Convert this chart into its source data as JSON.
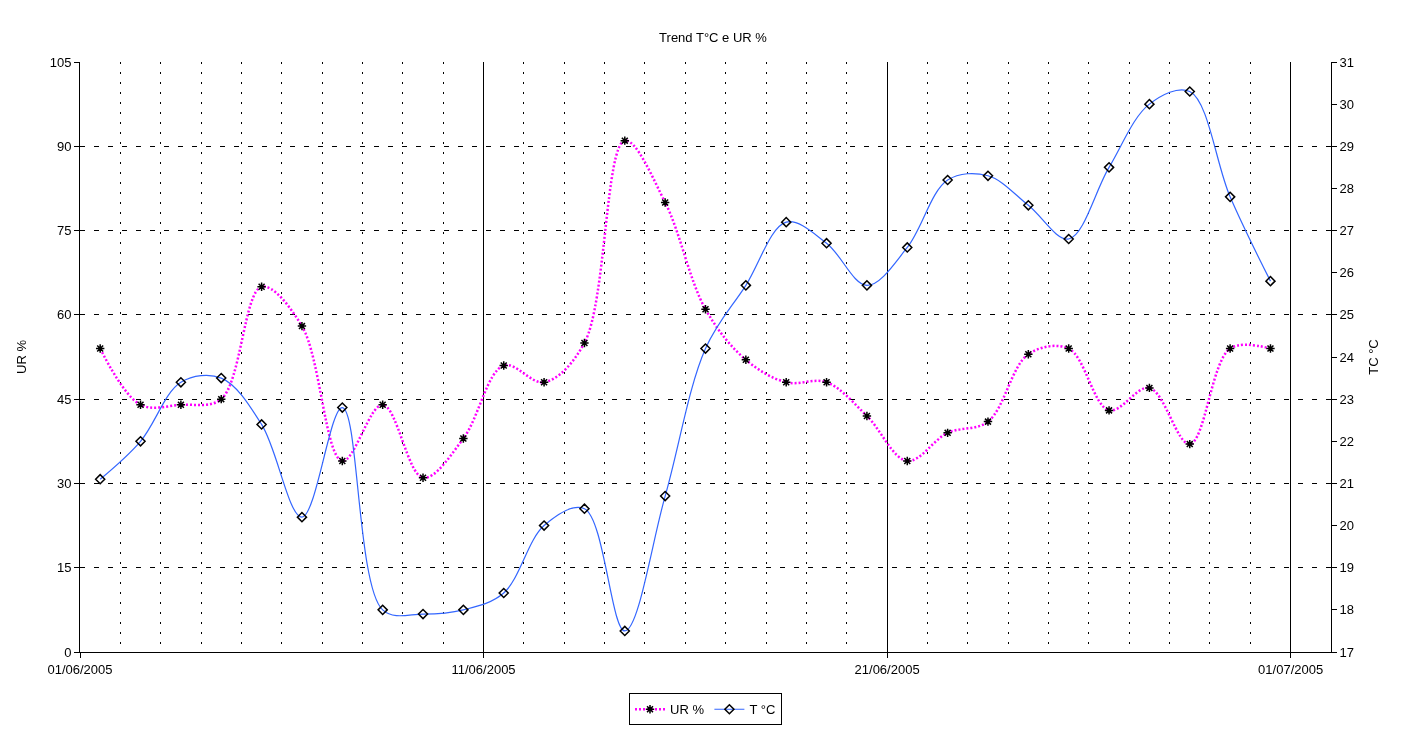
{
  "chart_data": {
    "type": "line",
    "title": "Trend T°C e UR %",
    "ylabel": "UR %",
    "y2label": "TC °C",
    "x": [
      "2005-06-01T12:00",
      "2005-06-02T12:00",
      "2005-06-03T12:00",
      "2005-06-04T12:00",
      "2005-06-05T12:00",
      "2005-06-06T12:00",
      "2005-06-07T12:00",
      "2005-06-08T12:00",
      "2005-06-09T12:00",
      "2005-06-10T12:00",
      "2005-06-11T12:00",
      "2005-06-12T12:00",
      "2005-06-13T12:00",
      "2005-06-14T12:00",
      "2005-06-15T12:00",
      "2005-06-16T12:00",
      "2005-06-17T12:00",
      "2005-06-18T12:00",
      "2005-06-19T12:00",
      "2005-06-20T12:00",
      "2005-06-21T12:00",
      "2005-06-22T12:00",
      "2005-06-23T12:00",
      "2005-06-24T12:00",
      "2005-06-25T12:00",
      "2005-06-26T12:00",
      "2005-06-27T12:00",
      "2005-06-28T12:00",
      "2005-06-29T12:00",
      "2005-06-30T12:00"
    ],
    "series": [
      {
        "name": "UR %",
        "color": "#ff00ff",
        "line_style": "dotted",
        "marker": "cross",
        "values": [
          54,
          44,
          44,
          45,
          65,
          58,
          34,
          44,
          31,
          38,
          51,
          48,
          55,
          91,
          80,
          61,
          52,
          48,
          48,
          42,
          34,
          39,
          41,
          53,
          54,
          43,
          47,
          37,
          54,
          54
        ]
      },
      {
        "name": "T °C",
        "color": "#3366ff",
        "line_style": "solid",
        "marker": "diamond",
        "axis": "y2",
        "values": [
          21.1,
          22.0,
          23.4,
          23.5,
          22.4,
          20.2,
          22.8,
          18.0,
          17.9,
          18.0,
          18.4,
          20.0,
          20.4,
          17.5,
          20.7,
          24.2,
          25.7,
          27.2,
          26.7,
          25.7,
          26.6,
          28.2,
          28.3,
          27.6,
          26.8,
          28.5,
          30.0,
          30.3,
          27.8,
          25.8
        ]
      }
    ],
    "xlim": [
      "2005-06-01",
      "2005-07-02"
    ],
    "xticks": [
      {
        "value": "2005-06-01",
        "label": "01/06/2005"
      },
      {
        "value": "2005-06-11",
        "label": "11/06/2005"
      },
      {
        "value": "2005-06-21",
        "label": "21/06/2005"
      },
      {
        "value": "2005-07-01",
        "label": "01/07/2005"
      }
    ],
    "ylim": [
      0,
      105
    ],
    "yticks": [
      0,
      15,
      30,
      45,
      60,
      75,
      90,
      105
    ],
    "y2lim": [
      17,
      31
    ],
    "y2ticks": [
      17,
      18,
      19,
      20,
      21,
      22,
      23,
      24,
      25,
      26,
      27,
      28,
      29,
      30,
      31
    ],
    "grid": true,
    "legend": "bottom"
  }
}
